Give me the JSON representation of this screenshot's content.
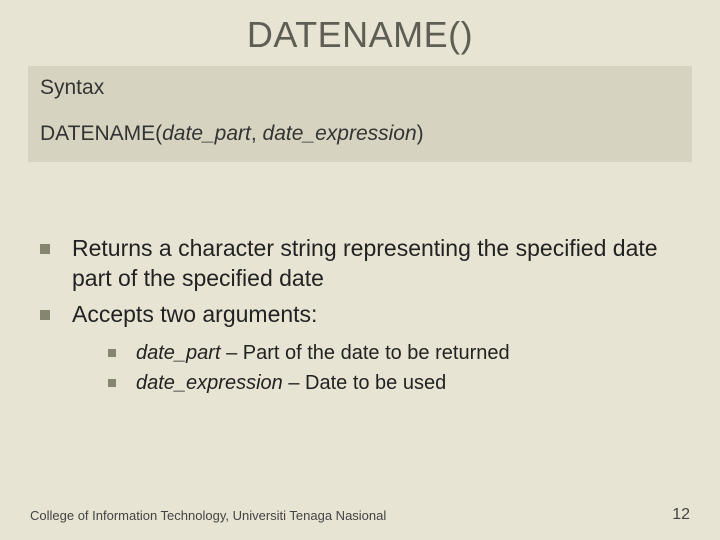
{
  "colors": {
    "background": "#e7e4d3",
    "syntax_box_bg": "#d6d4c1",
    "title_color": "#5e5e55",
    "bullet_color": "#858570",
    "text_color": "#222222"
  },
  "title": "DATENAME()",
  "syntax": {
    "label": "Syntax",
    "fn": "DATENAME(",
    "arg1": "date_part",
    "sep": ", ",
    "arg2": "date_expression",
    "close": ")"
  },
  "bullets": [
    "Returns a character string representing the specified date part of the specified date",
    "Accepts two arguments:"
  ],
  "sub_bullets": [
    {
      "term": "date_part",
      "desc": " – Part of the date to be returned"
    },
    {
      "term": "date_expression",
      "desc": " – Date to be used"
    }
  ],
  "footer": {
    "text": "College of Information Technology, Universiti Tenaga Nasional",
    "page": "12"
  }
}
